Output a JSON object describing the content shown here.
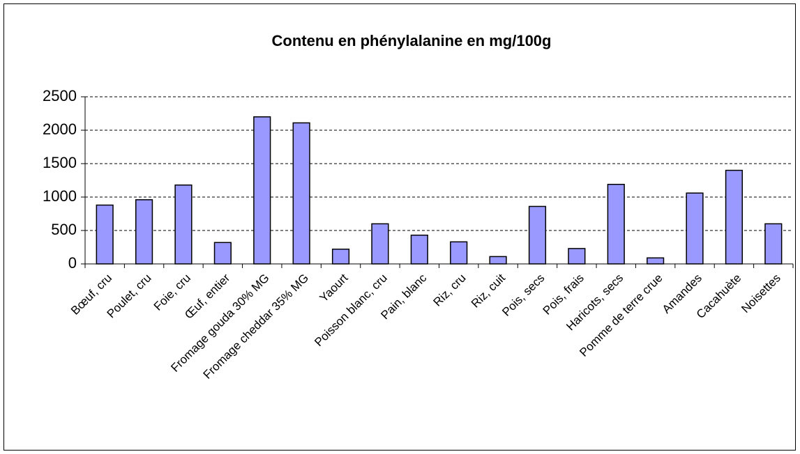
{
  "chart_data": {
    "type": "bar",
    "title": "Contenu en phénylalanine en mg/100g",
    "categories": [
      "Bœuf, cru",
      "Poulet, cru",
      "Foie, cru",
      "Œuf, entier",
      "Fromage gouda 30% MG",
      "Fromage cheddar 35% MG",
      "Yaourt",
      "Poisson blanc, cru",
      "Pain, blanc",
      "Riz, cru",
      "Riz, cuit",
      "Pois, secs",
      "Pois, frais",
      "Haricots, secs",
      "Pomme de terre crue",
      "Amandes",
      "Cacahuète",
      "Noisettes"
    ],
    "values": [
      880,
      960,
      1180,
      320,
      2200,
      2110,
      220,
      600,
      430,
      330,
      110,
      860,
      230,
      1190,
      90,
      1060,
      1400,
      600
    ],
    "color": "#9999ff",
    "ylim": [
      0,
      2500
    ],
    "yticks": [
      0,
      500,
      1000,
      1500,
      2000,
      2500
    ],
    "grid": true
  }
}
